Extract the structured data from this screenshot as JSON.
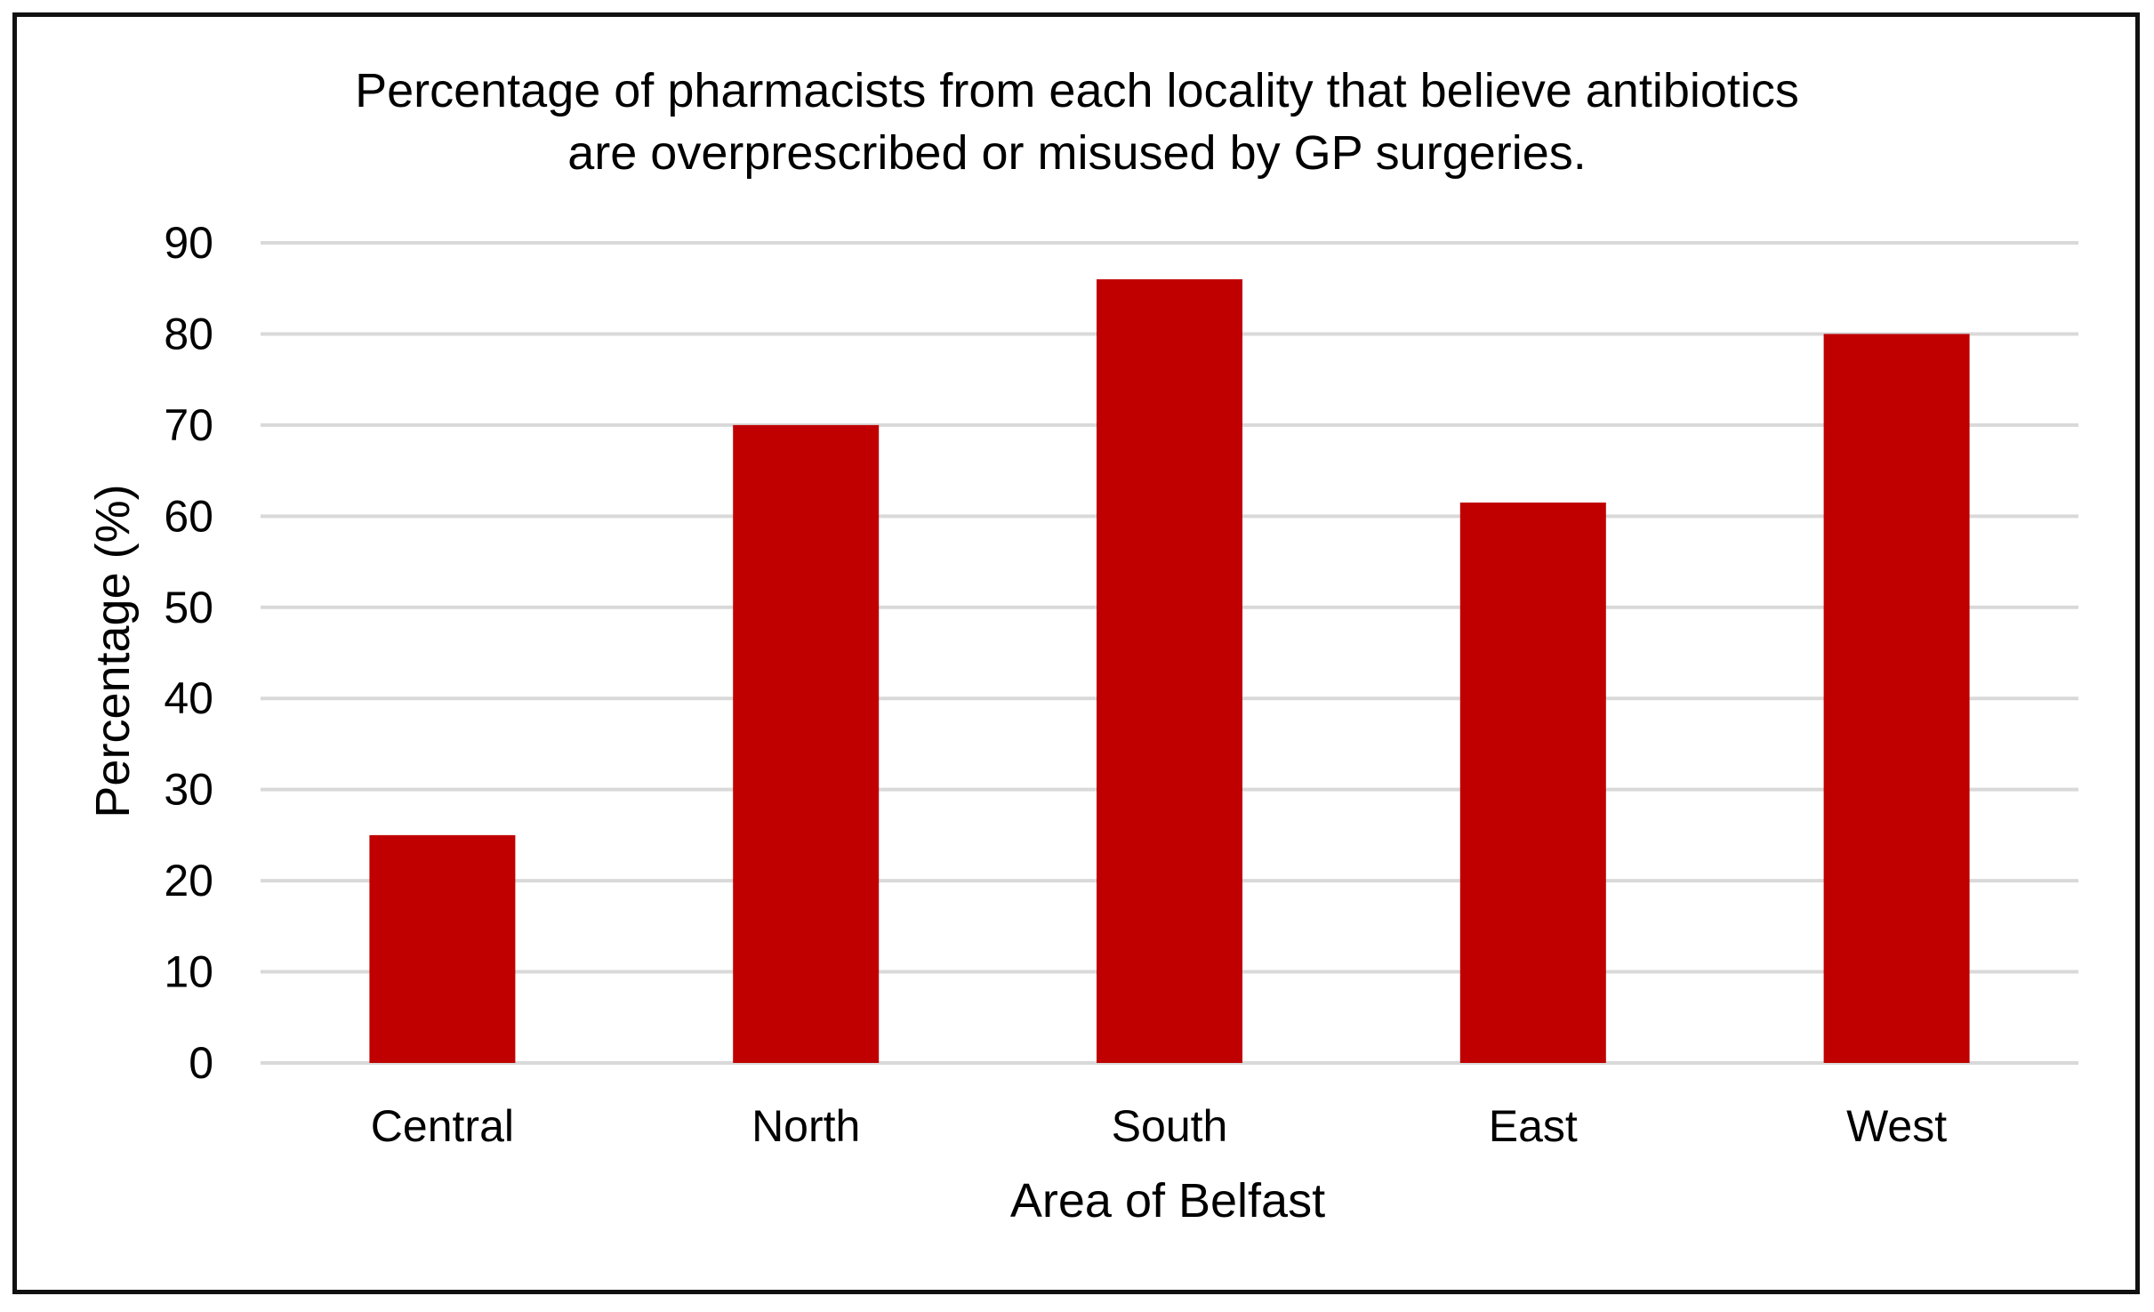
{
  "chart_data": {
    "type": "bar",
    "title_lines": [
      "Percentage of pharmacists from each locality that believe antibiotics",
      "are overprescribed or misused by GP surgeries."
    ],
    "xlabel": "Area of Belfast",
    "ylabel": "Percentage (%)",
    "categories": [
      "Central",
      "North",
      "South",
      "East",
      "West"
    ],
    "values": [
      25,
      70,
      86,
      61.5,
      80
    ],
    "ylim": [
      0,
      90
    ],
    "yticks": [
      "0",
      "10",
      "20",
      "30",
      "40",
      "50",
      "60",
      "70",
      "80",
      "90"
    ],
    "grid": true,
    "legend": "none",
    "bar_color": "#c00000"
  }
}
